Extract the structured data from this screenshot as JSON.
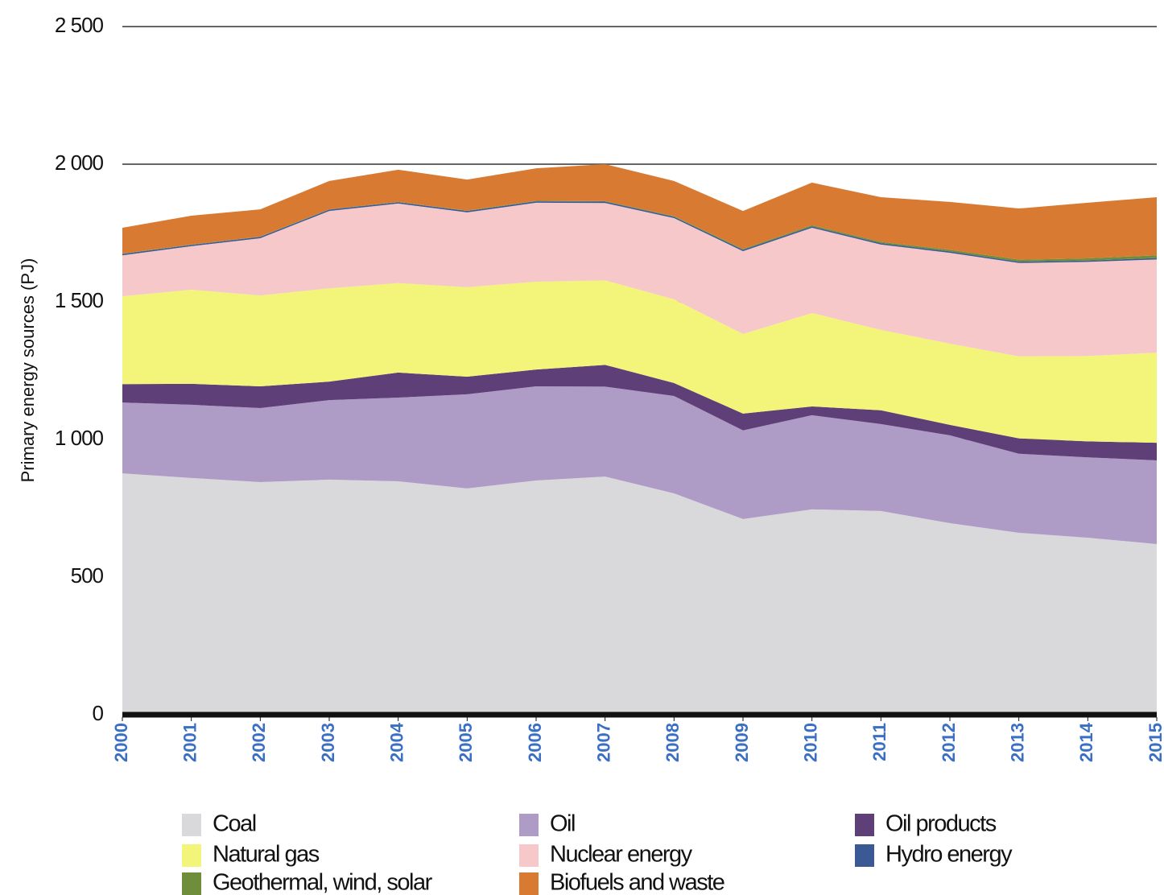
{
  "chart_data": {
    "type": "stacked-area",
    "y_label": "Primary energy sources (PJ)",
    "x": [
      2000,
      2001,
      2002,
      2003,
      2004,
      2005,
      2006,
      2007,
      2008,
      2009,
      2010,
      2011,
      2012,
      2013,
      2014,
      2015
    ],
    "xlim": [
      2000,
      2015
    ],
    "ylim": [
      0,
      2500
    ],
    "yticks": [
      0,
      500,
      {
        "value": 1000,
        "label": "1 000"
      },
      {
        "value": 1500,
        "label": "1 500"
      },
      {
        "value": 2000,
        "label": "2 000"
      },
      {
        "value": 2500,
        "label": "2 500"
      }
    ],
    "grid": true,
    "legend": "bottom",
    "series": [
      {
        "name": "Coal",
        "color": "#d9d9db",
        "values": [
          877,
          860,
          845,
          854,
          848,
          822,
          851,
          865,
          804,
          711,
          746,
          740,
          696,
          661,
          643,
          620
        ]
      },
      {
        "name": "Oil",
        "color": "#ae9cc7",
        "values": [
          257,
          266,
          269,
          289,
          304,
          342,
          342,
          327,
          354,
          322,
          342,
          316,
          319,
          287,
          292,
          304
        ]
      },
      {
        "name": "Oil products",
        "color": "#5f3f78",
        "values": [
          67,
          76,
          79,
          67,
          91,
          64,
          61,
          79,
          47,
          61,
          32,
          50,
          38,
          56,
          58,
          64
        ]
      },
      {
        "name": "Natural gas",
        "color": "#f2f57a",
        "values": [
          319,
          342,
          330,
          339,
          325,
          325,
          319,
          307,
          304,
          289,
          339,
          292,
          295,
          298,
          310,
          327
        ]
      },
      {
        "name": "Nuclear energy",
        "color": "#f7c8c9",
        "values": [
          149,
          158,
          208,
          281,
          289,
          272,
          287,
          281,
          295,
          301,
          310,
          310,
          330,
          339,
          342,
          339
        ]
      },
      {
        "name": "Hydro energy",
        "color": "#3b5a95",
        "values": [
          5,
          5,
          5,
          5,
          5,
          5,
          5,
          5,
          5,
          5,
          5,
          5,
          5,
          5,
          5,
          5
        ]
      },
      {
        "name": "Geothermal, wind, solar",
        "color": "#6f8e3c",
        "values": [
          1,
          1,
          1,
          1,
          1,
          1,
          2,
          2,
          2,
          3,
          4,
          5,
          6,
          7,
          8,
          10
        ]
      },
      {
        "name": "Biofuels and waste",
        "color": "#d97a32",
        "values": [
          94,
          105,
          99,
          103,
          117,
          113,
          118,
          134,
          128,
          138,
          155,
          162,
          174,
          186,
          202,
          211
        ]
      }
    ]
  }
}
